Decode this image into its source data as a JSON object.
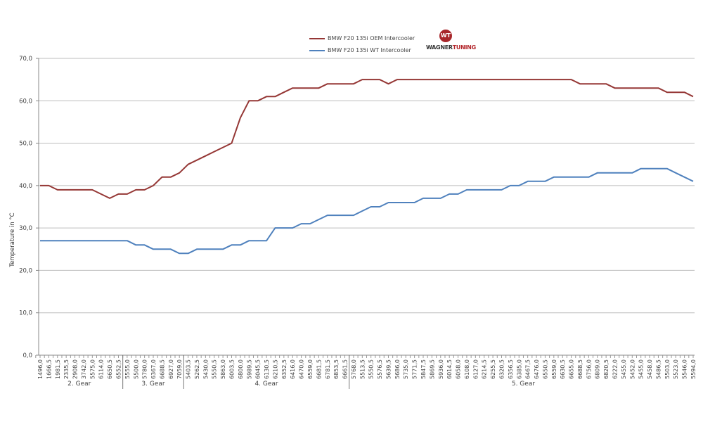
{
  "chart_data": {
    "type": "line",
    "title": "",
    "xlabel": "",
    "ylabel": "Temperature in °C",
    "ylim": [
      0,
      70
    ],
    "yticks": [
      "0,0",
      "10,0",
      "20,0",
      "30,0",
      "40,0",
      "50,0",
      "60,0",
      "70,0"
    ],
    "grid": true,
    "legend_position": "top-center",
    "categories": [
      "1496,0",
      "1666,5",
      "1981,5",
      "2335,5",
      "2908,0",
      "3742,0",
      "5575,0",
      "6114,0",
      "6650,5",
      "6552,5",
      "5555,0",
      "5500,0",
      "5780,0",
      "6367,0",
      "6688,5",
      "6927,0",
      "7059,0",
      "5403,5",
      "5262,5",
      "5430,0",
      "5550,5",
      "5863,0",
      "6003,5",
      "6800,0",
      "5989,5",
      "6045,5",
      "6130,5",
      "6210,5",
      "6352,5",
      "6416,0",
      "6470,0",
      "6559,0",
      "6681,5",
      "6781,5",
      "6853,5",
      "6661,5",
      "5768,0",
      "5513,5",
      "5550,5",
      "5576,5",
      "5639,5",
      "5686,0",
      "5735,0",
      "5771,5",
      "5847,5",
      "5869,5",
      "5936,0",
      "6014,5",
      "6058,0",
      "6108,0",
      "6127,0",
      "6214,5",
      "6255,5",
      "6320,5",
      "6356,5",
      "6385,0",
      "6467,5",
      "6476,0",
      "6550,5",
      "6559,0",
      "6630,5",
      "6655,0",
      "6688,5",
      "6756,0",
      "6809,0",
      "6820,5",
      "6222,0",
      "5455,0",
      "5452,0",
      "5455,0",
      "5458,0",
      "5486,5",
      "5503,0",
      "5523,0",
      "5546,0",
      "5594,0"
    ],
    "groups": [
      {
        "label": "2. Gear",
        "count": 10
      },
      {
        "label": "3. Gear",
        "count": 7
      },
      {
        "label": "4. Gear",
        "count": 19
      },
      {
        "label": "5. Gear",
        "count": 40
      }
    ],
    "series": [
      {
        "name": "BMW F20 135i OEM Intercooler",
        "color": "#953735",
        "values": [
          40,
          40,
          39,
          39,
          39,
          39,
          39,
          38,
          37,
          38,
          38,
          39,
          39,
          40,
          42,
          42,
          43,
          45,
          46,
          47,
          48,
          49,
          50,
          56,
          60,
          60,
          61,
          61,
          62,
          63,
          63,
          63,
          63,
          64,
          64,
          64,
          64,
          65,
          65,
          65,
          64,
          65,
          65,
          65,
          65,
          65,
          65,
          65,
          65,
          65,
          65,
          65,
          65,
          65,
          65,
          65,
          65,
          65,
          65,
          65,
          65,
          65,
          64,
          64,
          64,
          64,
          63,
          63,
          63,
          63,
          63,
          63,
          62,
          62,
          62,
          61
        ]
      },
      {
        "name": "BMW F20 135i WT Intercooler",
        "color": "#4f81bd",
        "values": [
          27,
          27,
          27,
          27,
          27,
          27,
          27,
          27,
          27,
          27,
          27,
          26,
          26,
          25,
          25,
          25,
          24,
          24,
          25,
          25,
          25,
          25,
          26,
          26,
          27,
          27,
          27,
          30,
          30,
          30,
          31,
          31,
          32,
          33,
          33,
          33,
          33,
          34,
          35,
          35,
          36,
          36,
          36,
          36,
          37,
          37,
          37,
          38,
          38,
          39,
          39,
          39,
          39,
          39,
          40,
          40,
          41,
          41,
          41,
          42,
          42,
          42,
          42,
          42,
          43,
          43,
          43,
          43,
          43,
          44,
          44,
          44,
          44,
          43,
          42,
          41
        ]
      }
    ]
  },
  "logo": {
    "text_a": "WAGNER",
    "text_b": "TUNING",
    "mark": "WT"
  }
}
